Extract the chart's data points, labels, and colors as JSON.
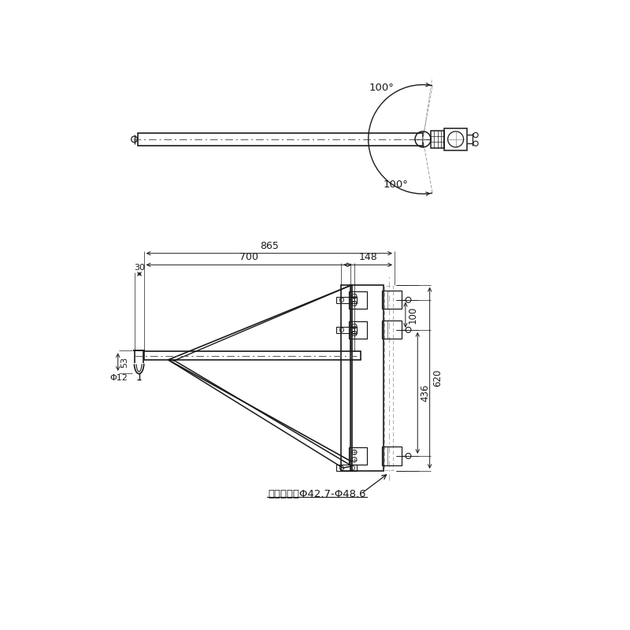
{
  "bg_color": "#ffffff",
  "line_color": "#1a1a1a",
  "dim_color": "#1a1a1a",
  "gray_dash": "#aaaaaa",
  "bottom_label": "対応パイプΦ42.7-Φ48.6",
  "dim_865": "865",
  "dim_700": "700",
  "dim_148": "148",
  "dim_30": "30",
  "dim_53": "53",
  "dim_12": "Φ12",
  "dim_100": "100",
  "dim_436": "436",
  "dim_620": "620",
  "deg_upper": "100°",
  "deg_lower": "100°"
}
